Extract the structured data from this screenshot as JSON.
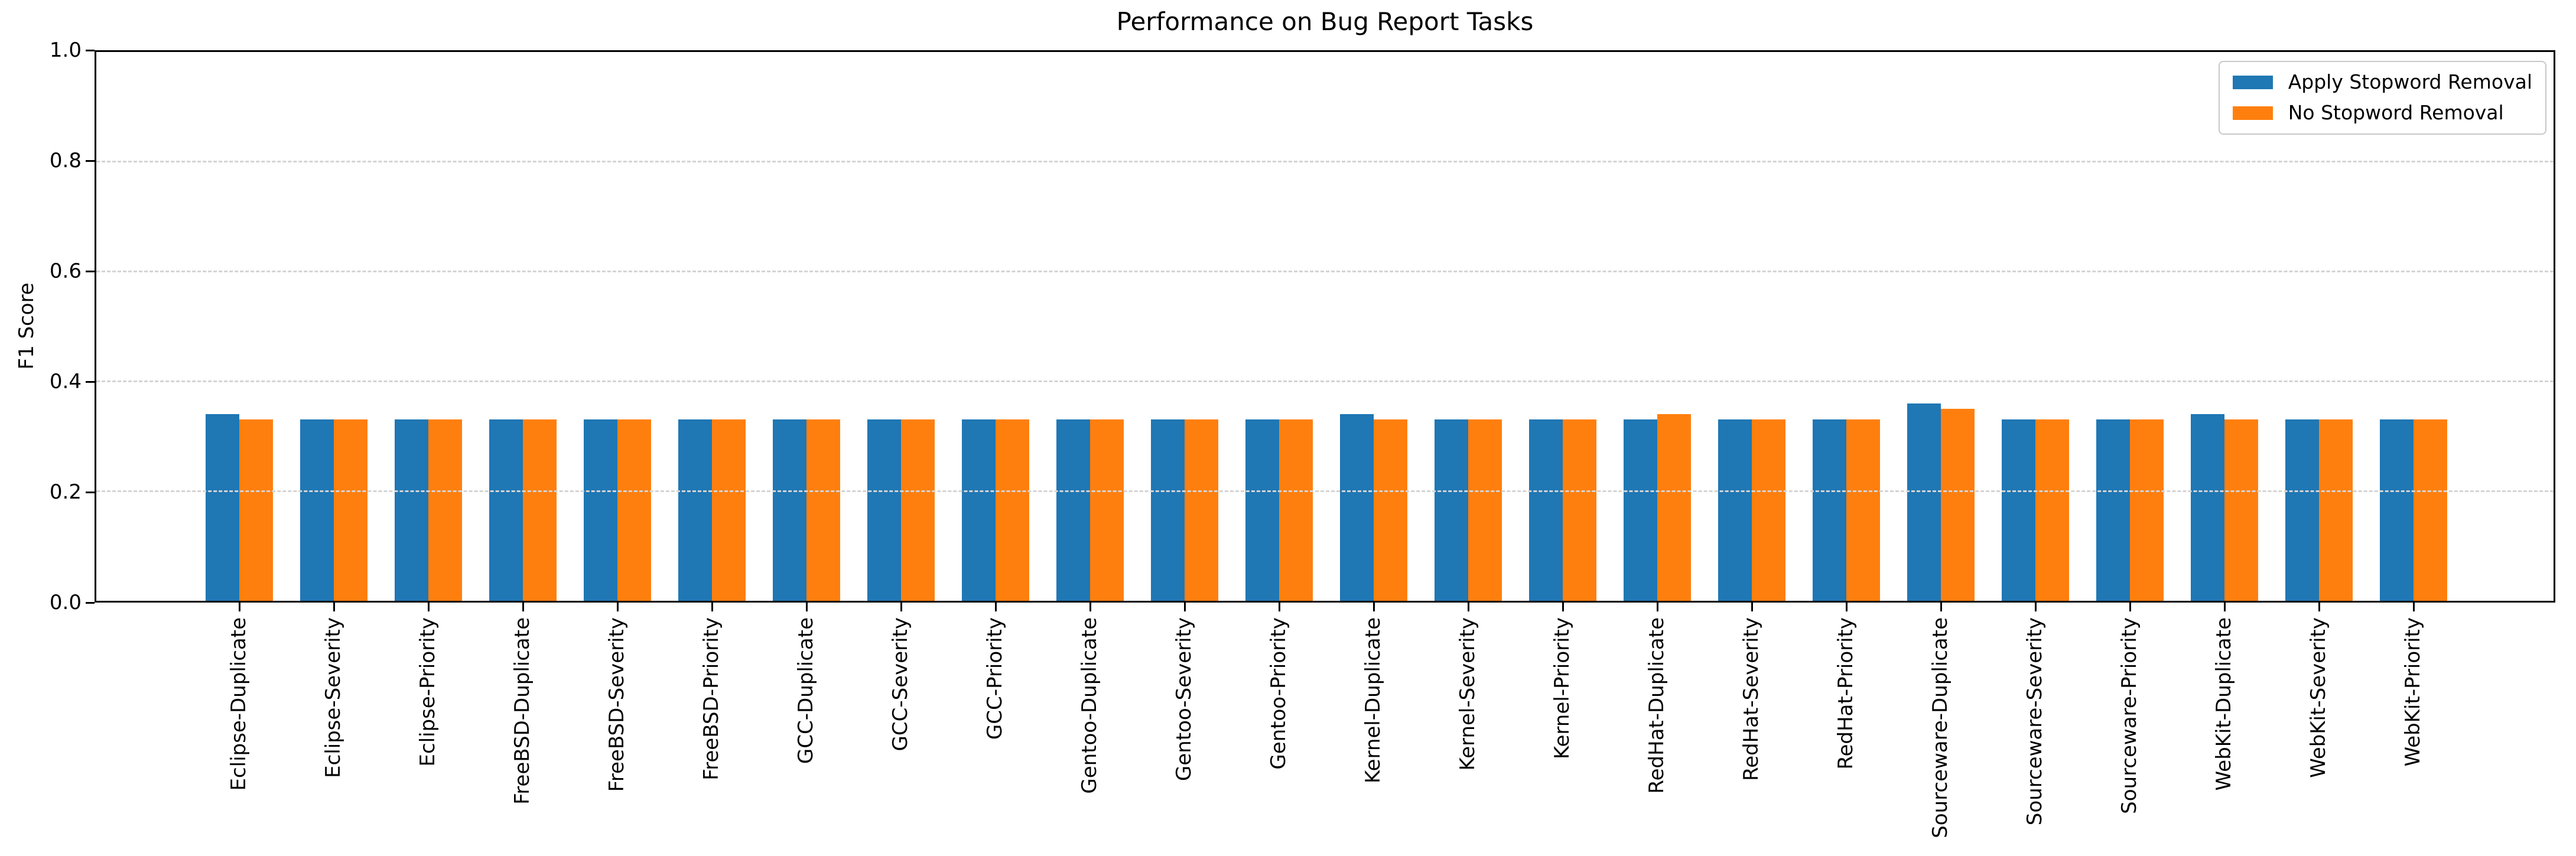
{
  "chart_data": {
    "type": "bar",
    "title": "Performance on Bug Report Tasks",
    "xlabel": "",
    "ylabel": "F1 Score",
    "ylim": [
      0.0,
      1.0
    ],
    "ytick_labels": [
      "0.0",
      "0.2",
      "0.4",
      "0.6",
      "0.8",
      "1.0"
    ],
    "grid": "horizontal-dashed",
    "legend_position": "upper right",
    "categories": [
      "Eclipse-Duplicate",
      "Eclipse-Severity",
      "Eclipse-Priority",
      "FreeBSD-Duplicate",
      "FreeBSD-Severity",
      "FreeBSD-Priority",
      "GCC-Duplicate",
      "GCC-Severity",
      "GCC-Priority",
      "Gentoo-Duplicate",
      "Gentoo-Severity",
      "Gentoo-Priority",
      "Kernel-Duplicate",
      "Kernel-Severity",
      "Kernel-Priority",
      "RedHat-Duplicate",
      "RedHat-Severity",
      "RedHat-Priority",
      "Sourceware-Duplicate",
      "Sourceware-Severity",
      "Sourceware-Priority",
      "WebKit-Duplicate",
      "WebKit-Severity",
      "WebKit-Priority"
    ],
    "series": [
      {
        "name": "Apply Stopword Removal",
        "color": "#1f77b4",
        "values": [
          0.34,
          0.33,
          0.33,
          0.33,
          0.33,
          0.33,
          0.33,
          0.33,
          0.33,
          0.33,
          0.33,
          0.33,
          0.34,
          0.33,
          0.33,
          0.33,
          0.33,
          0.33,
          0.36,
          0.33,
          0.33,
          0.34,
          0.33,
          0.33
        ]
      },
      {
        "name": "No Stopword Removal",
        "color": "#ff7f0e",
        "values": [
          0.33,
          0.33,
          0.33,
          0.33,
          0.33,
          0.33,
          0.33,
          0.33,
          0.33,
          0.33,
          0.33,
          0.33,
          0.33,
          0.33,
          0.33,
          0.34,
          0.33,
          0.33,
          0.35,
          0.33,
          0.33,
          0.33,
          0.33,
          0.33
        ]
      }
    ]
  },
  "colors": {
    "spine": "#000000",
    "grid": "#d4d4d4",
    "background": "#ffffff",
    "legend_border": "#c8c8c8"
  }
}
